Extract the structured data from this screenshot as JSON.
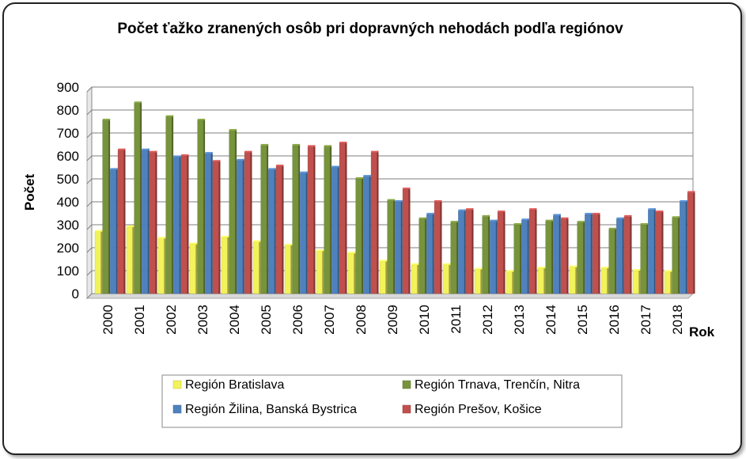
{
  "chart_data": {
    "type": "bar",
    "title": "Počet ťažko zranených osôb pri dopravných nehodách podľa regiónov",
    "xlabel": "Rok",
    "ylabel": "Počet",
    "ylim": [
      0,
      900
    ],
    "yticks": [
      0,
      100,
      200,
      300,
      400,
      500,
      600,
      700,
      800,
      900
    ],
    "grid": true,
    "legend_position": "bottom",
    "categories": [
      "2000",
      "2001",
      "2002",
      "2003",
      "2004",
      "2005",
      "2006",
      "2007",
      "2008",
      "2009",
      "2010",
      "2011",
      "2012",
      "2013",
      "2014",
      "2015",
      "2016",
      "2017",
      "2018"
    ],
    "series": [
      {
        "name": "Región Bratislava",
        "color": "#f2f25a",
        "values": [
          270,
          290,
          240,
          215,
          245,
          225,
          210,
          185,
          175,
          140,
          125,
          125,
          105,
          95,
          110,
          115,
          110,
          100,
          95
        ]
      },
      {
        "name": "Región Trnava, Trenčín, Nitra",
        "color": "#77933c",
        "values": [
          755,
          830,
          770,
          755,
          710,
          645,
          645,
          640,
          500,
          405,
          325,
          310,
          335,
          300,
          315,
          310,
          280,
          300,
          330
        ]
      },
      {
        "name": "Región Žilina, Banská Bystrica",
        "color": "#4f81bd",
        "values": [
          540,
          625,
          595,
          610,
          580,
          540,
          525,
          550,
          510,
          400,
          345,
          360,
          315,
          320,
          340,
          345,
          325,
          365,
          400
        ]
      },
      {
        "name": "Región Prešov, Košice",
        "color": "#c0504d",
        "values": [
          625,
          615,
          600,
          575,
          615,
          555,
          640,
          655,
          615,
          455,
          400,
          365,
          355,
          365,
          325,
          345,
          335,
          355,
          440
        ]
      }
    ]
  }
}
